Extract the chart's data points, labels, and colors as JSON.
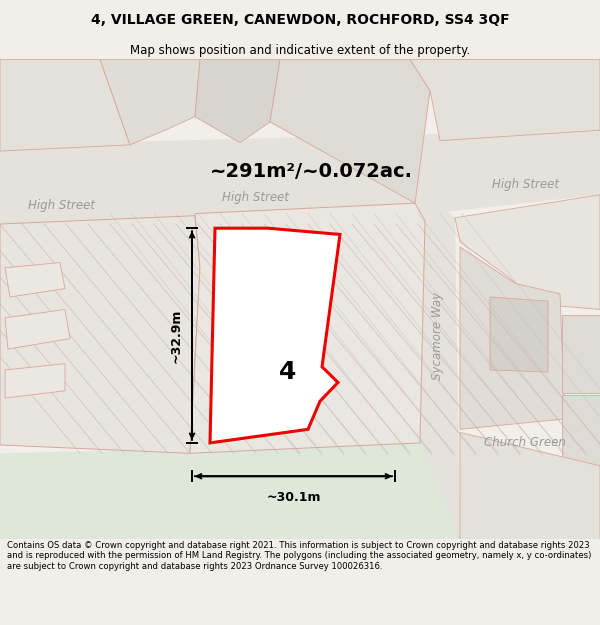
{
  "title_line1": "4, VILLAGE GREEN, CANEWDON, ROCHFORD, SS4 3QF",
  "title_line2": "Map shows position and indicative extent of the property.",
  "area_text": "~291m²/~0.072ac.",
  "dim_width": "~30.1m",
  "dim_height": "~32.9m",
  "plot_number": "4",
  "footer_text": "Contains OS data © Crown copyright and database right 2021. This information is subject to Crown copyright and database rights 2023 and is reproduced with the permission of HM Land Registry. The polygons (including the associated geometry, namely x, y co-ordinates) are subject to Crown copyright and database rights 2023 Ordnance Survey 100026316.",
  "bg_color": "#f2efea",
  "map_bg": "#f5f3ef",
  "road_fill": "#e5e1db",
  "green_fill": "#dde8d8",
  "property_fill": "#f0edea",
  "road_stroke": "#d4a8a0",
  "property_stroke": "#ee0000",
  "street_label_color": "#9a9a9a",
  "hatch_color": "#c8b8b4",
  "dim_arrow_color": "#111111",
  "title_fontsize": 10,
  "subtitle_fontsize": 8.5,
  "area_fontsize": 14,
  "dim_fontsize": 9,
  "street_fontsize": 8.5,
  "plot_label_fontsize": 18
}
